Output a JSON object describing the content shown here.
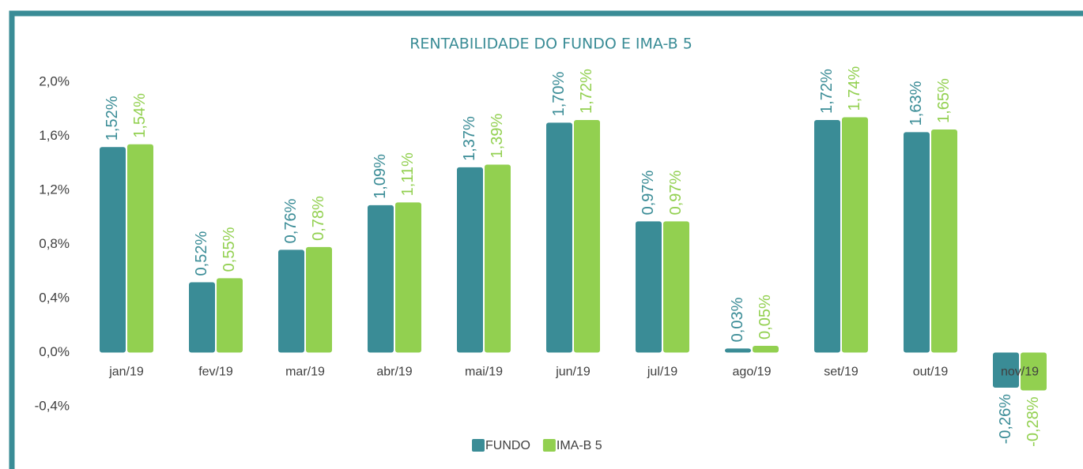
{
  "chart_data": {
    "type": "bar",
    "title": "RENTABILIDADE DO FUNDO E IMA-B 5",
    "categories": [
      "jan/19",
      "fev/19",
      "mar/19",
      "abr/19",
      "mai/19",
      "jun/19",
      "jul/19",
      "ago/19",
      "set/19",
      "out/19",
      "nov/19"
    ],
    "series": [
      {
        "name": "FUNDO",
        "color": "#3a8c96",
        "values": [
          1.52,
          0.52,
          0.76,
          1.09,
          1.37,
          1.7,
          0.97,
          0.03,
          1.72,
          1.63,
          -0.26
        ],
        "value_labels": [
          "1,52%",
          "0,52%",
          "0,76%",
          "1,09%",
          "1,37%",
          "1,70%",
          "0,97%",
          "0,03%",
          "1,72%",
          "1,63%",
          "-0,26%"
        ]
      },
      {
        "name": "IMA-B 5",
        "color": "#92d050",
        "values": [
          1.54,
          0.55,
          0.78,
          1.11,
          1.39,
          1.72,
          0.97,
          0.05,
          1.74,
          1.65,
          -0.28
        ],
        "value_labels": [
          "1,54%",
          "0,55%",
          "0,78%",
          "1,11%",
          "1,39%",
          "1,72%",
          "0,97%",
          "0,05%",
          "1,74%",
          "1,65%",
          "-0,28%"
        ]
      }
    ],
    "ylim": [
      -0.4,
      2.0
    ],
    "yticks": [
      {
        "value": -0.4,
        "label": "-0,4%"
      },
      {
        "value": 0.0,
        "label": "0,0%"
      },
      {
        "value": 0.4,
        "label": "0,4%"
      },
      {
        "value": 0.8,
        "label": "0,8%"
      },
      {
        "value": 1.2,
        "label": "1,2%"
      },
      {
        "value": 1.6,
        "label": "1,6%"
      },
      {
        "value": 2.0,
        "label": "2,0%"
      }
    ],
    "grid": false,
    "legend": "bottom"
  }
}
